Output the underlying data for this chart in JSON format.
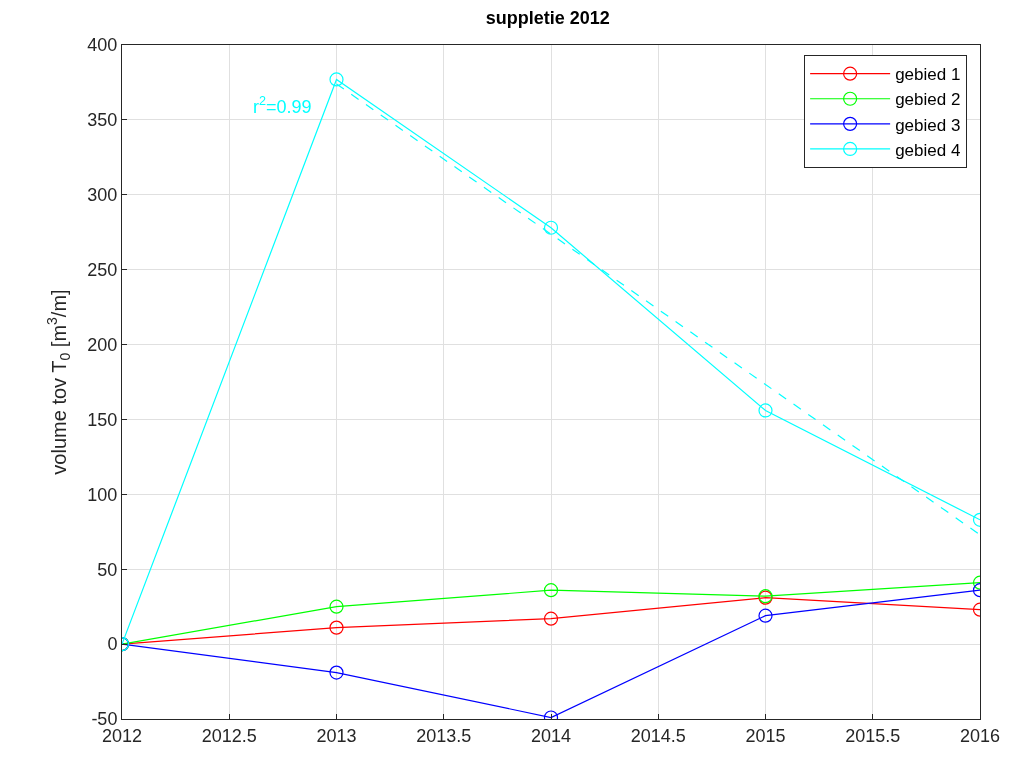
{
  "chart_data": {
    "type": "line",
    "title": "suppletie 2012",
    "ylabel": "volume tov T$_{0}$ [m$^{3}$/m]",
    "x": [
      2012,
      2013,
      2014,
      2015,
      2016
    ],
    "series": [
      {
        "name": "gebied 1",
        "color": "#ff0000",
        "values": [
          0,
          11,
          17,
          31,
          23
        ],
        "marker": "circle"
      },
      {
        "name": "gebied 2",
        "color": "#00ff00",
        "values": [
          0,
          25,
          36,
          32,
          41
        ],
        "marker": "circle"
      },
      {
        "name": "gebied 3",
        "color": "#0000ff",
        "values": [
          0,
          -19,
          -49,
          19,
          36
        ],
        "marker": "circle"
      },
      {
        "name": "gebied 4",
        "color": "#00ffff",
        "values": [
          0,
          377,
          278,
          156,
          83
        ],
        "marker": "circle"
      },
      {
        "color": "#00ffff",
        "x": [
          2013,
          2016
        ],
        "values": [
          374,
          73
        ],
        "marker": "none",
        "line_style": "dashed"
      }
    ],
    "annotations": [
      "r$^{2}$=0.99"
    ],
    "xlim": [
      2012,
      2016
    ],
    "xticks": [
      2012,
      2012.5,
      2013,
      2013.5,
      2014,
      2014.5,
      2015,
      2015.5,
      2016
    ],
    "ylim": [
      -50,
      400
    ],
    "yticks": [
      -50,
      0,
      50,
      100,
      150,
      200,
      250,
      300,
      350,
      400
    ],
    "grid": true,
    "legend": "top right",
    "line_style": "solid"
  }
}
